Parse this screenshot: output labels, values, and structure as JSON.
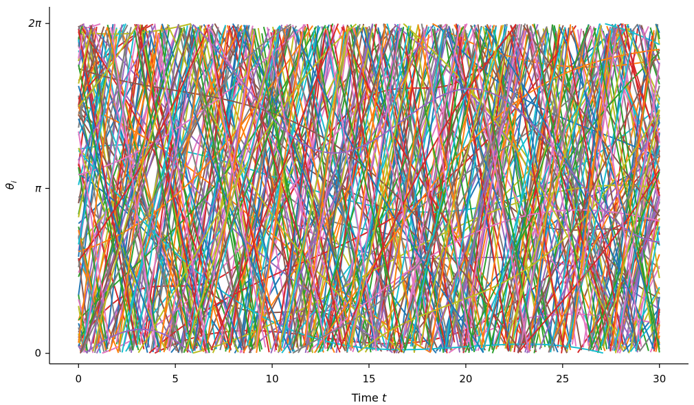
{
  "chart_data": {
    "type": "line",
    "title": "",
    "xlabel": "Time",
    "xlabel_var": "t",
    "ylabel": "θ",
    "ylabel_sub": "i",
    "xlim": [
      -1.5,
      31.5
    ],
    "ylim": [
      -0.2,
      6.6
    ],
    "data_xrange": [
      0,
      30
    ],
    "data_yrange": [
      0,
      6.283185
    ],
    "x_ticks": [
      {
        "value": 0,
        "label": "0"
      },
      {
        "value": 5,
        "label": "5"
      },
      {
        "value": 10,
        "label": "10"
      },
      {
        "value": 15,
        "label": "15"
      },
      {
        "value": 20,
        "label": "20"
      },
      {
        "value": 25,
        "label": "25"
      },
      {
        "value": 30,
        "label": "30"
      }
    ],
    "y_ticks": [
      {
        "value": 0,
        "label": "0",
        "pi_label": false
      },
      {
        "value": 3.141593,
        "label": "π",
        "pi_label": true
      },
      {
        "value": 6.283185,
        "label": "2π",
        "pi_label": true
      }
    ],
    "grid": false,
    "legend": "none",
    "wrapping": "modulo 2π",
    "colors": [
      "#1f77b4",
      "#ff7f0e",
      "#2ca02c",
      "#d62728",
      "#9467bd",
      "#8c564b",
      "#e377c2",
      "#7f7f7f",
      "#bcbd22",
      "#17becf"
    ],
    "series": [
      {
        "y0": 2.6,
        "omega": 0.6,
        "a": 0.9,
        "f": 0.35,
        "p": 0.3
      },
      {
        "y0": 5.4,
        "omega": -0.8,
        "a": 1.1,
        "f": 0.22,
        "p": 1.9
      },
      {
        "y0": 1.2,
        "omega": 1.3,
        "a": 0.6,
        "f": 0.41,
        "p": 2.7
      },
      {
        "y0": 4.1,
        "omega": 0.2,
        "a": 1.4,
        "f": 0.18,
        "p": 0.9
      },
      {
        "y0": 0.4,
        "omega": -1.6,
        "a": 0.8,
        "f": 0.29,
        "p": 4.1
      },
      {
        "y0": 3.3,
        "omega": 1.9,
        "a": 0.5,
        "f": 0.52,
        "p": 5.2
      },
      {
        "y0": 6.0,
        "omega": 0.9,
        "a": 1.2,
        "f": 0.25,
        "p": 3.3
      },
      {
        "y0": 2.0,
        "omega": -0.4,
        "a": 1.0,
        "f": 0.33,
        "p": 1.4
      },
      {
        "y0": 5.0,
        "omega": 2.3,
        "a": 0.7,
        "f": 0.47,
        "p": 2.2
      },
      {
        "y0": 1.7,
        "omega": -2.1,
        "a": 0.9,
        "f": 0.21,
        "p": 0.6
      },
      {
        "y0": 3.9,
        "omega": 0.4,
        "a": 1.5,
        "f": 0.16,
        "p": 4.4
      },
      {
        "y0": 0.9,
        "omega": 1.1,
        "a": 0.6,
        "f": 0.38,
        "p": 5.8
      },
      {
        "y0": 4.7,
        "omega": -1.2,
        "a": 1.3,
        "f": 0.27,
        "p": 3.1
      },
      {
        "y0": 2.9,
        "omega": 2.7,
        "a": 0.8,
        "f": 0.44,
        "p": 1.0
      },
      {
        "y0": 5.8,
        "omega": -0.2,
        "a": 1.1,
        "f": 0.19,
        "p": 2.5
      },
      {
        "y0": 1.4,
        "omega": 0.7,
        "a": 1.0,
        "f": 0.31,
        "p": 4.7
      },
      {
        "y0": 3.6,
        "omega": -2.6,
        "a": 0.5,
        "f": 0.55,
        "p": 0.2
      },
      {
        "y0": 0.2,
        "omega": 1.6,
        "a": 1.2,
        "f": 0.23,
        "p": 3.6
      },
      {
        "y0": 4.4,
        "omega": -0.6,
        "a": 0.7,
        "f": 0.36,
        "p": 5.5
      },
      {
        "y0": 2.3,
        "omega": 0.1,
        "a": 1.6,
        "f": 0.14,
        "p": 1.7
      },
      {
        "y0": 6.2,
        "omega": 1.4,
        "a": 0.9,
        "f": 0.42,
        "p": 2.9
      },
      {
        "y0": 1.0,
        "omega": -1.0,
        "a": 1.1,
        "f": 0.26,
        "p": 0.8
      },
      {
        "y0": 3.1,
        "omega": 2.0,
        "a": 0.6,
        "f": 0.49,
        "p": 4.0
      },
      {
        "y0": 5.2,
        "omega": -1.8,
        "a": 1.0,
        "f": 0.2,
        "p": 1.2
      },
      {
        "y0": 0.6,
        "omega": 0.5,
        "a": 1.3,
        "f": 0.34,
        "p": 5.0
      },
      {
        "y0": 4.0,
        "omega": -0.3,
        "a": 0.8,
        "f": 0.4,
        "p": 2.0
      },
      {
        "y0": 2.5,
        "omega": 1.0,
        "a": 1.4,
        "f": 0.17,
        "p": 3.9
      },
      {
        "y0": 5.6,
        "omega": 2.5,
        "a": 0.5,
        "f": 0.53,
        "p": 0.5
      },
      {
        "y0": 1.8,
        "omega": -2.3,
        "a": 0.9,
        "f": 0.24,
        "p": 4.8
      },
      {
        "y0": 3.5,
        "omega": 0.8,
        "a": 1.2,
        "f": 0.3,
        "p": 1.6
      },
      {
        "y0": 0.1,
        "omega": -0.9,
        "a": 0.7,
        "f": 0.45,
        "p": 2.4
      },
      {
        "y0": 4.9,
        "omega": 1.7,
        "a": 1.0,
        "f": 0.28,
        "p": 5.9
      },
      {
        "y0": 2.2,
        "omega": -1.4,
        "a": 1.5,
        "f": 0.15,
        "p": 3.0
      },
      {
        "y0": 6.1,
        "omega": 0.3,
        "a": 0.6,
        "f": 0.5,
        "p": 0.7
      },
      {
        "y0": 1.3,
        "omega": 2.2,
        "a": 1.1,
        "f": 0.32,
        "p": 4.3
      },
      {
        "y0": 3.8,
        "omega": -0.5,
        "a": 0.9,
        "f": 0.37,
        "p": 1.1
      },
      {
        "y0": 0.7,
        "omega": 1.2,
        "a": 1.3,
        "f": 0.21,
        "p": 5.3
      },
      {
        "y0": 4.6,
        "omega": -2.0,
        "a": 0.6,
        "f": 0.46,
        "p": 2.6
      },
      {
        "y0": 2.7,
        "omega": 0.6,
        "a": 1.0,
        "f": 0.27,
        "p": 3.8
      },
      {
        "y0": 5.3,
        "omega": -1.1,
        "a": 1.2,
        "f": 0.19,
        "p": 0.4
      },
      {
        "y0": 1.6,
        "omega": 2.8,
        "a": 0.5,
        "f": 0.56,
        "p": 4.6
      },
      {
        "y0": 3.2,
        "omega": -0.1,
        "a": 1.6,
        "f": 0.13,
        "p": 1.8
      },
      {
        "y0": 0.3,
        "omega": 0.9,
        "a": 0.8,
        "f": 0.39,
        "p": 3.2
      },
      {
        "y0": 4.3,
        "omega": -1.5,
        "a": 1.1,
        "f": 0.25,
        "p": 5.6
      },
      {
        "y0": 2.1,
        "omega": 1.5,
        "a": 0.9,
        "f": 0.43,
        "p": 0.1
      },
      {
        "y0": 5.9,
        "omega": -0.7,
        "a": 1.0,
        "f": 0.3,
        "p": 2.8
      },
      {
        "y0": 1.1,
        "omega": 0.2,
        "a": 1.4,
        "f": 0.18,
        "p": 4.2
      },
      {
        "y0": 3.7,
        "omega": 2.4,
        "a": 0.6,
        "f": 0.48,
        "p": 1.5
      },
      {
        "y0": 0.8,
        "omega": -1.9,
        "a": 1.2,
        "f": 0.22,
        "p": 3.5
      },
      {
        "y0": 4.8,
        "omega": 0.7,
        "a": 0.7,
        "f": 0.35,
        "p": 5.1
      },
      {
        "y0": 2.4,
        "omega": -0.4,
        "a": 1.3,
        "f": 0.2,
        "p": 0.9
      },
      {
        "y0": 5.5,
        "omega": 1.8,
        "a": 0.9,
        "f": 0.41,
        "p": 2.3
      },
      {
        "y0": 1.9,
        "omega": -2.4,
        "a": 0.8,
        "f": 0.29,
        "p": 4.9
      },
      {
        "y0": 3.4,
        "omega": 0.4,
        "a": 1.5,
        "f": 0.16,
        "p": 1.3
      },
      {
        "y0": 0.5,
        "omega": 1.1,
        "a": 1.0,
        "f": 0.33,
        "p": 3.7
      },
      {
        "y0": 4.2,
        "omega": -0.8,
        "a": 0.6,
        "f": 0.51,
        "p": 0.6
      },
      {
        "y0": 2.8,
        "omega": 2.1,
        "a": 1.1,
        "f": 0.24,
        "p": 5.4
      },
      {
        "y0": 6.0,
        "omega": -1.3,
        "a": 0.9,
        "f": 0.37,
        "p": 2.1
      },
      {
        "y0": 1.5,
        "omega": 0.0,
        "a": 1.7,
        "f": 0.12,
        "p": 4.5
      },
      {
        "y0": 3.0,
        "omega": 1.3,
        "a": 0.7,
        "f": 0.44,
        "p": 0.3
      },
      {
        "y0": 0.0,
        "omega": -1.7,
        "a": 1.2,
        "f": 0.26,
        "p": 3.4
      },
      {
        "y0": 5.1,
        "omega": 0.8,
        "a": 0.8,
        "f": 0.32,
        "p": 5.7
      },
      {
        "y0": 2.6,
        "omega": -2.2,
        "a": 1.0,
        "f": 0.23,
        "p": 1.9
      },
      {
        "y0": 4.5,
        "omega": 2.6,
        "a": 0.5,
        "f": 0.54,
        "p": 2.7
      },
      {
        "y0": 1.2,
        "omega": -0.5,
        "a": 1.4,
        "f": 0.17,
        "p": 4.0
      },
      {
        "y0": 3.9,
        "omega": 1.0,
        "a": 1.1,
        "f": 0.28,
        "p": 0.8
      },
      {
        "y0": 0.9,
        "omega": -1.0,
        "a": 0.9,
        "f": 0.4,
        "p": 3.0
      },
      {
        "y0": 5.7,
        "omega": 0.5,
        "a": 1.3,
        "f": 0.2,
        "p": 5.2
      },
      {
        "y0": 2.0,
        "omega": 1.9,
        "a": 0.6,
        "f": 0.47,
        "p": 1.4
      },
      {
        "y0": 4.1,
        "omega": -0.2,
        "a": 1.5,
        "f": 0.15,
        "p": 3.3
      },
      {
        "y0": 1.7,
        "omega": 2.9,
        "a": 0.7,
        "f": 0.5,
        "p": 0.2
      },
      {
        "y0": 3.3,
        "omega": -1.6,
        "a": 1.0,
        "f": 0.31,
        "p": 4.4
      },
      {
        "y0": 6.2,
        "omega": 0.6,
        "a": 1.2,
        "f": 0.22,
        "p": 2.5
      },
      {
        "y0": 0.4,
        "omega": -0.9,
        "a": 0.8,
        "f": 0.38,
        "p": 5.8
      },
      {
        "y0": 4.7,
        "omega": 1.4,
        "a": 0.9,
        "f": 0.27,
        "p": 1.0
      },
      {
        "y0": 2.3,
        "omega": -2.5,
        "a": 1.1,
        "f": 0.34,
        "p": 3.6
      },
      {
        "y0": 5.0,
        "omega": 0.1,
        "a": 1.6,
        "f": 0.14,
        "p": 4.7
      },
      {
        "y0": 1.4,
        "omega": 1.6,
        "a": 0.5,
        "f": 0.53,
        "p": 0.5
      },
      {
        "y0": 3.6,
        "omega": -0.6,
        "a": 1.3,
        "f": 0.21,
        "p": 2.9
      },
      {
        "y0": 0.6,
        "omega": 2.0,
        "a": 1.0,
        "f": 0.36,
        "p": 5.0
      },
      {
        "y0": 4.4,
        "omega": -1.2,
        "a": 0.7,
        "f": 0.45,
        "p": 1.7
      },
      {
        "y0": 2.9,
        "omega": 0.3,
        "a": 1.4,
        "f": 0.18,
        "p": 3.9
      },
      {
        "y0": 5.4,
        "omega": 1.2,
        "a": 0.9,
        "f": 0.3,
        "p": 0.7
      },
      {
        "y0": 1.0,
        "omega": -2.0,
        "a": 1.2,
        "f": 0.25,
        "p": 4.3
      },
      {
        "y0": 3.2,
        "omega": 0.9,
        "a": 0.6,
        "f": 0.49,
        "p": 2.2
      },
      {
        "y0": 0.2,
        "omega": -0.3,
        "a": 1.5,
        "f": 0.16,
        "p": 5.5
      },
      {
        "y0": 4.9,
        "omega": 2.3,
        "a": 0.8,
        "f": 0.42,
        "p": 1.1
      },
      {
        "y0": 2.2,
        "omega": -1.4,
        "a": 1.0,
        "f": 0.29,
        "p": 3.1
      },
      {
        "y0": 5.8,
        "omega": 0.4,
        "a": 1.1,
        "f": 0.24,
        "p": 4.8
      },
      {
        "y0": 1.8,
        "omega": 1.7,
        "a": 0.7,
        "f": 0.4,
        "p": 0.4
      },
      {
        "y0": 3.8,
        "omega": -0.8,
        "a": 1.3,
        "f": 0.19,
        "p": 2.6
      },
      {
        "y0": 0.7,
        "omega": 2.7,
        "a": 0.6,
        "f": 0.52,
        "p": 5.3
      },
      {
        "y0": 4.6,
        "omega": -1.8,
        "a": 0.9,
        "f": 0.33,
        "p": 1.6
      },
      {
        "y0": 2.5,
        "omega": 0.7,
        "a": 1.2,
        "f": 0.23,
        "p": 3.8
      },
      {
        "y0": 6.1,
        "omega": -0.1,
        "a": 1.0,
        "f": 0.37,
        "p": 0.1
      },
      {
        "y0": 1.3,
        "omega": 1.0,
        "a": 1.4,
        "f": 0.17,
        "p": 4.6
      },
      {
        "y0": 3.5,
        "omega": -2.3,
        "a": 0.8,
        "f": 0.44,
        "p": 2.0
      },
      {
        "y0": 0.3,
        "omega": 0.5,
        "a": 1.1,
        "f": 0.28,
        "p": 5.9
      },
      {
        "y0": 4.3,
        "omega": 1.5,
        "a": 0.9,
        "f": 0.35,
        "p": 1.2
      }
    ]
  }
}
